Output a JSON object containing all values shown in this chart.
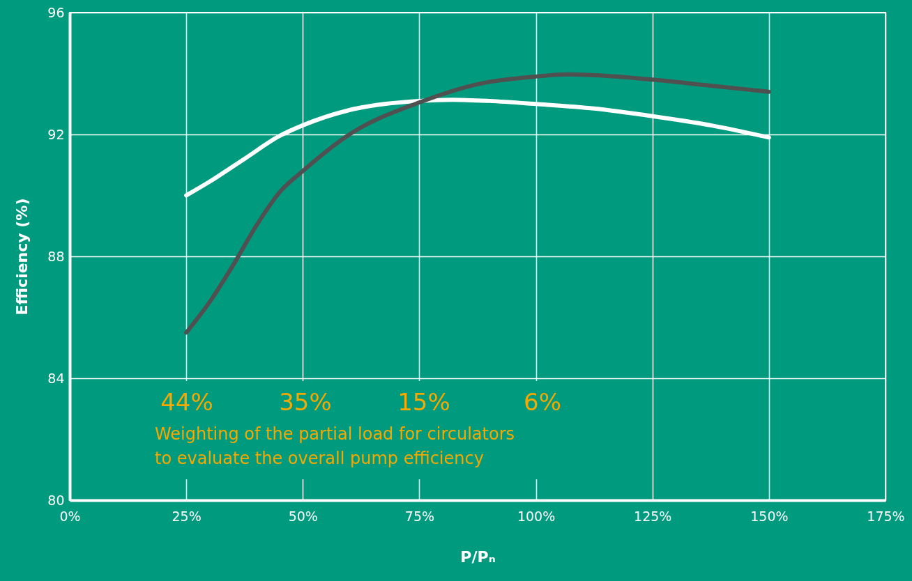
{
  "chart_data": {
    "type": "line",
    "xlabel": "P/Pₙ",
    "ylabel": "Efficiency (%)",
    "xlim": [
      0,
      175
    ],
    "xticks": [
      {
        "value": 0,
        "label": "0%"
      },
      {
        "value": 25,
        "label": "25%"
      },
      {
        "value": 50,
        "label": "50%"
      },
      {
        "value": 75,
        "label": "75%"
      },
      {
        "value": 100,
        "label": "100%"
      },
      {
        "value": 125,
        "label": "125%"
      },
      {
        "value": 150,
        "label": "150%"
      },
      {
        "value": 175,
        "label": "175%"
      }
    ],
    "ylim": [
      80,
      96
    ],
    "yticks": [
      80,
      84,
      88,
      92,
      96
    ],
    "grid": true,
    "marker": "none",
    "line_style": "solid",
    "series": [
      {
        "color": "#ffffff",
        "x": [
          25,
          30,
          37.5,
          45,
          50,
          60,
          75,
          82,
          90,
          100,
          112.5,
          125,
          137.5,
          150
        ],
        "values": [
          90.0,
          90.45,
          91.2,
          91.95,
          92.3,
          92.8,
          93.1,
          93.14,
          93.1,
          93.0,
          92.85,
          92.6,
          92.3,
          91.9
        ]
      },
      {
        "color": "#505050",
        "x": [
          25,
          30,
          35,
          40,
          45,
          50,
          60,
          75,
          87.5,
          100,
          107,
          125,
          137.5,
          150
        ],
        "values": [
          85.5,
          86.5,
          87.7,
          89.0,
          90.1,
          90.8,
          92.0,
          93.05,
          93.65,
          93.9,
          93.97,
          93.8,
          93.6,
          93.4
        ]
      }
    ],
    "annotations": [
      "44%",
      "35%",
      "15%",
      "6%",
      "Weighting of the partial load for circulators",
      "to evaluate the overall pump efficiency"
    ]
  }
}
